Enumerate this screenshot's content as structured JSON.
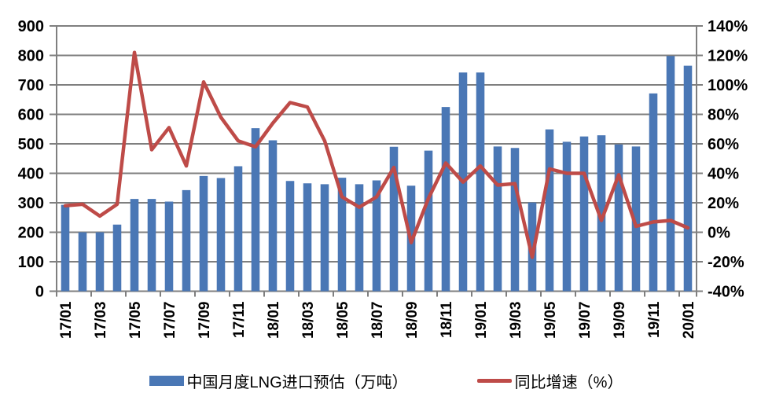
{
  "chart_data": {
    "type": "bar+line",
    "title": "",
    "categories": [
      "17/01",
      "17/02",
      "17/03",
      "17/04",
      "17/05",
      "17/06",
      "17/07",
      "17/08",
      "17/09",
      "17/10",
      "17/11",
      "17/12",
      "18/01",
      "18/02",
      "18/03",
      "18/04",
      "18/05",
      "18/06",
      "18/07",
      "18/08",
      "18/09",
      "18/10",
      "18/11",
      "18/12",
      "19/01",
      "19/02",
      "19/03",
      "19/04",
      "19/05",
      "19/06",
      "19/07",
      "19/08",
      "19/09",
      "19/10",
      "19/11",
      "19/12",
      "20/01"
    ],
    "x_tick_labels": [
      "17/01",
      "17/03",
      "17/05",
      "17/07",
      "17/09",
      "17/11",
      "18/01",
      "18/03",
      "18/05",
      "18/07",
      "18/09",
      "18/11",
      "19/01",
      "19/03",
      "19/05",
      "19/07",
      "19/09",
      "19/11",
      "20/01"
    ],
    "series": [
      {
        "name": "中国月度LNG进口预估（万吨）",
        "type": "bar",
        "axis": "left",
        "values": [
          293,
          200,
          200,
          226,
          313,
          313,
          304,
          343,
          391,
          384,
          424,
          553,
          512,
          374,
          366,
          363,
          385,
          363,
          376,
          490,
          358,
          477,
          625,
          742,
          742,
          491,
          486,
          301,
          549,
          507,
          525,
          529,
          498,
          491,
          671,
          798,
          765
        ]
      },
      {
        "name": "同比增速（%）",
        "type": "line",
        "axis": "right",
        "values_pct": [
          18,
          19,
          11,
          19,
          122,
          56,
          71,
          45,
          102,
          78,
          62,
          58,
          74,
          88,
          85,
          62,
          24,
          17,
          24,
          44,
          -7,
          23,
          47,
          34,
          45,
          32,
          33,
          -17,
          43,
          40,
          40,
          8,
          39,
          4,
          7,
          8,
          3
        ]
      }
    ],
    "left_axis": {
      "min": 0,
      "max": 900,
      "step": 100,
      "tick_labels": [
        "900",
        "800",
        "700",
        "600",
        "500",
        "400",
        "300",
        "200",
        "100",
        "0"
      ]
    },
    "right_axis": {
      "min": -40,
      "max": 140,
      "step": 20,
      "tick_labels": [
        "140%",
        "120%",
        "100%",
        "80%",
        "60%",
        "40%",
        "20%",
        "0%",
        "-20%",
        "-40%"
      ]
    },
    "grid": true,
    "legend_position": "bottom"
  },
  "colors": {
    "bar": "#4A77B5",
    "line": "#BE4B48",
    "grid": "#7F7F7F",
    "axis": "#7F7F7F",
    "text": "#000000"
  }
}
